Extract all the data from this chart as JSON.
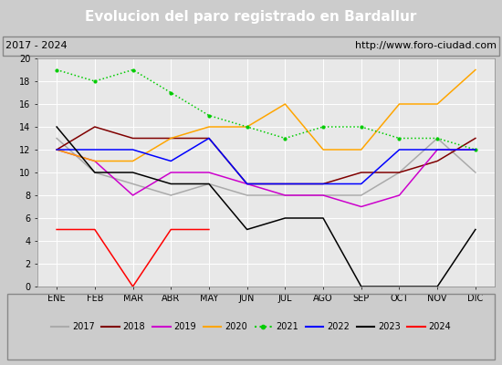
{
  "title": "Evolucion del paro registrado en Bardallur",
  "subtitle_left": "2017 - 2024",
  "subtitle_right": "http://www.foro-ciudad.com",
  "months": [
    "ENE",
    "FEB",
    "MAR",
    "ABR",
    "MAY",
    "JUN",
    "JUL",
    "AGO",
    "SEP",
    "OCT",
    "NOV",
    "DIC"
  ],
  "series": {
    "2017": [
      13,
      10,
      9,
      8,
      9,
      8,
      8,
      8,
      8,
      10,
      13,
      10
    ],
    "2018": [
      12,
      14,
      13,
      13,
      13,
      9,
      9,
      9,
      10,
      10,
      11,
      13
    ],
    "2019": [
      12,
      11,
      8,
      10,
      10,
      9,
      8,
      8,
      7,
      8,
      12,
      12
    ],
    "2020": [
      12,
      11,
      11,
      13,
      14,
      14,
      16,
      12,
      12,
      16,
      16,
      19
    ],
    "2021": [
      19,
      18,
      19,
      17,
      15,
      14,
      13,
      14,
      14,
      13,
      13,
      12
    ],
    "2022": [
      12,
      12,
      12,
      11,
      13,
      9,
      9,
      9,
      9,
      12,
      12,
      12
    ],
    "2023": [
      14,
      10,
      10,
      9,
      9,
      5,
      6,
      6,
      0,
      0,
      0,
      5
    ],
    "2024": [
      5,
      5,
      0,
      5,
      5,
      null,
      null,
      null,
      null,
      null,
      null,
      null
    ]
  },
  "colors": {
    "2017": "#aaaaaa",
    "2018": "#800000",
    "2019": "#cc00cc",
    "2020": "#ffa500",
    "2021": "#00cc00",
    "2022": "#0000ff",
    "2023": "#000000",
    "2024": "#ff0000"
  },
  "line_styles": {
    "2017": "-",
    "2018": "-",
    "2019": "-",
    "2020": "-",
    "2021": ":",
    "2022": "-",
    "2023": "-",
    "2024": "-"
  },
  "markers": {
    "2017": "None",
    "2018": "None",
    "2019": "None",
    "2020": "None",
    "2021": "o",
    "2022": "None",
    "2023": "None",
    "2024": "None"
  },
  "ylim": [
    0,
    20
  ],
  "yticks": [
    0,
    2,
    4,
    6,
    8,
    10,
    12,
    14,
    16,
    18,
    20
  ],
  "plot_bg": "#e8e8e8",
  "title_bg": "#4472c4",
  "title_color": "#ffffff",
  "header_bg": "#cccccc",
  "legend_bg": "#dddddd",
  "grid_color": "#ffffff",
  "title_fontsize": 11,
  "subtitle_fontsize": 8,
  "tick_fontsize": 7,
  "legend_fontsize": 7
}
